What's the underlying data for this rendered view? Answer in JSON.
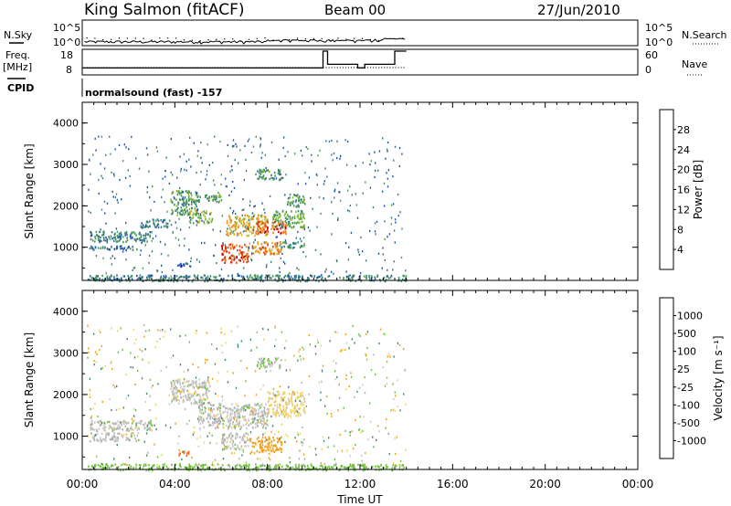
{
  "header": {
    "station": "King Salmon (fitACF)",
    "beam": "Beam 00",
    "date": "27/Jun/2010"
  },
  "left_labels": {
    "nsky": "N.Sky",
    "freq_line1": "Freq.",
    "freq_line2": "[MHz]",
    "cpid": "CPID",
    "nsky_ticks": [
      "10^5",
      "10^0"
    ],
    "freq_ticks": [
      "18",
      "8"
    ]
  },
  "right_labels": {
    "nsearch": "N.Search",
    "nave": "Nave",
    "nsearch_ticks": [
      "10^5",
      "10^0"
    ],
    "nave_ticks": [
      "60",
      "0"
    ]
  },
  "mode_label": "normalsound (fast) -157",
  "colors": {
    "power_scale": [
      "#1a1acc",
      "#2255aa",
      "#3a7a8a",
      "#4a9a5a",
      "#8cbf30",
      "#e0b020",
      "#f08020",
      "#e04010",
      "#cc0000"
    ],
    "velocity_scale": [
      "#ee1010",
      "#f06020",
      "#f0a020",
      "#f0d060",
      "#c8c8c8",
      "#b0b0b0",
      "#70c040",
      "#3a8a6a",
      "#2a5aa0",
      "#2020c0"
    ]
  },
  "chart_data": [
    {
      "type": "line",
      "name": "N.Sky",
      "x": [
        "00:00",
        "14:00"
      ],
      "ylim": [
        1,
        100000
      ],
      "scale": "log"
    },
    {
      "type": "line",
      "name": "Freq.",
      "ylabel": "[MHz]",
      "ylim": [
        8,
        18
      ],
      "nave_ylim": [
        0,
        60
      ],
      "nave_steps": [
        {
          "t": 0.0,
          "v": 14
        },
        {
          "t": 10.4,
          "v": 60
        },
        {
          "t": 10.6,
          "v": 24
        },
        {
          "t": 11.8,
          "v": 24
        },
        {
          "t": 11.9,
          "v": 14
        },
        {
          "t": 12.2,
          "v": 24
        },
        {
          "t": 13.4,
          "v": 24
        },
        {
          "t": 13.5,
          "v": 60
        },
        {
          "t": 14.0,
          "v": 60
        }
      ]
    },
    {
      "type": "heatmap",
      "name": "power",
      "ylabel": "Slant Range [km]",
      "ylim": [
        200,
        4500
      ],
      "yticks": [
        "1000",
        "2000",
        "3000",
        "4000"
      ],
      "colorbar_label": "Power [dB]",
      "colorbar_ticks": [
        "4",
        "8",
        "12",
        "16",
        "20",
        "24",
        "28"
      ],
      "blobs": [
        {
          "t0": 0.3,
          "t1": 3.0,
          "r0": 1150,
          "r1": 1400,
          "v": 8
        },
        {
          "t0": 0.3,
          "t1": 2.5,
          "r0": 950,
          "r1": 1050,
          "v": 6
        },
        {
          "t0": 2.5,
          "t1": 3.8,
          "r0": 1500,
          "r1": 1700,
          "v": 8
        },
        {
          "t0": 3.8,
          "t1": 5.0,
          "r0": 1800,
          "r1": 2400,
          "v": 10
        },
        {
          "t0": 4.6,
          "t1": 5.6,
          "r0": 1600,
          "r1": 1900,
          "v": 14
        },
        {
          "t0": 5.0,
          "t1": 6.0,
          "r0": 2100,
          "r1": 2300,
          "v": 10
        },
        {
          "t0": 6.0,
          "t1": 7.2,
          "r0": 650,
          "r1": 1100,
          "v": 24
        },
        {
          "t0": 6.2,
          "t1": 8.0,
          "r0": 1300,
          "r1": 1800,
          "v": 18
        },
        {
          "t0": 7.5,
          "t1": 8.8,
          "r0": 1350,
          "r1": 1650,
          "v": 24
        },
        {
          "t0": 7.2,
          "t1": 8.6,
          "r0": 850,
          "r1": 1150,
          "v": 20
        },
        {
          "t0": 8.2,
          "t1": 9.6,
          "r0": 1500,
          "r1": 1900,
          "v": 12
        },
        {
          "t0": 8.8,
          "t1": 9.6,
          "r0": 2000,
          "r1": 2300,
          "v": 10
        },
        {
          "t0": 7.5,
          "t1": 8.6,
          "r0": 2650,
          "r1": 2900,
          "v": 10
        },
        {
          "t0": 8.6,
          "t1": 9.6,
          "r0": 1000,
          "r1": 1150,
          "v": 10
        },
        {
          "t0": 4.0,
          "t1": 4.6,
          "r0": 550,
          "r1": 650,
          "v": 4
        },
        {
          "t0": 0.2,
          "t1": 14.0,
          "r0": 200,
          "r1": 350,
          "v": 8
        }
      ]
    },
    {
      "type": "heatmap",
      "name": "velocity",
      "ylabel": "Slant Range [km]",
      "ylim": [
        200,
        4500
      ],
      "yticks": [
        "1000",
        "2000",
        "3000",
        "4000"
      ],
      "colorbar_label": "Velocity [m s⁻¹]",
      "colorbar_ticks": [
        "-1000",
        "-500",
        "-100",
        "-25",
        "25",
        "100",
        "500",
        "1000"
      ],
      "blobs": [
        {
          "t0": 0.3,
          "t1": 3.0,
          "r0": 1150,
          "r1": 1400,
          "v": 0
        },
        {
          "t0": 0.3,
          "t1": 2.5,
          "r0": 900,
          "r1": 1100,
          "v": 0
        },
        {
          "t0": 3.8,
          "t1": 5.5,
          "r0": 1800,
          "r1": 2400,
          "v": 0
        },
        {
          "t0": 5.0,
          "t1": 8.0,
          "r0": 1200,
          "r1": 1800,
          "v": 0
        },
        {
          "t0": 6.0,
          "t1": 7.2,
          "r0": 700,
          "r1": 1100,
          "v": 0
        },
        {
          "t0": 7.2,
          "t1": 8.6,
          "r0": 600,
          "r1": 1000,
          "v": -300
        },
        {
          "t0": 8.0,
          "t1": 9.6,
          "r0": 1500,
          "r1": 2100,
          "v": -40
        },
        {
          "t0": 7.5,
          "t1": 8.6,
          "r0": 2650,
          "r1": 2900,
          "v": 20
        },
        {
          "t0": 4.0,
          "t1": 4.6,
          "r0": 550,
          "r1": 650,
          "v": -800
        },
        {
          "t0": 0.2,
          "t1": 14.0,
          "r0": 200,
          "r1": 350,
          "v": 50
        }
      ]
    }
  ],
  "time_axis": {
    "ticks": [
      "00:00",
      "04:00",
      "08:00",
      "12:00",
      "16:00",
      "20:00",
      "00:00"
    ],
    "label": "Time UT"
  }
}
